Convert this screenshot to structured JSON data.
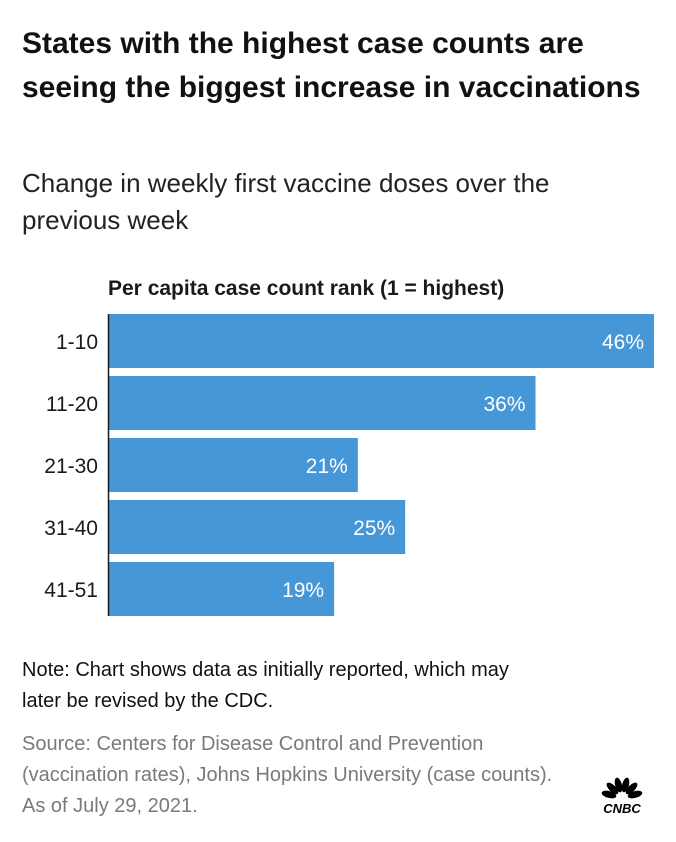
{
  "header": {
    "title": "States with the highest case counts are seeing the biggest increase in vaccinations",
    "subtitle": "Change in weekly first vaccine doses over the previous week"
  },
  "chart_data": {
    "type": "bar",
    "orientation": "horizontal",
    "title": "Per capita case count rank (1 = highest)",
    "categories": [
      "1-10",
      "11-20",
      "21-30",
      "31-40",
      "41-51"
    ],
    "values": [
      46,
      36,
      21,
      25,
      19
    ],
    "value_labels": [
      "46%",
      "36%",
      "21%",
      "25%",
      "19%"
    ],
    "unit": "%",
    "xlim": [
      0,
      46
    ],
    "grid": false,
    "bar_color": "#4597d8",
    "label_color": "#ffffff"
  },
  "footer": {
    "note": "Note: Chart shows data as initially reported, which may later be revised by the CDC.",
    "source": "Source: Centers for Disease Control and Prevention (vaccination rates), Johns Hopkins University (case counts). As of July 29, 2021.",
    "logo_text": "CNBC"
  }
}
